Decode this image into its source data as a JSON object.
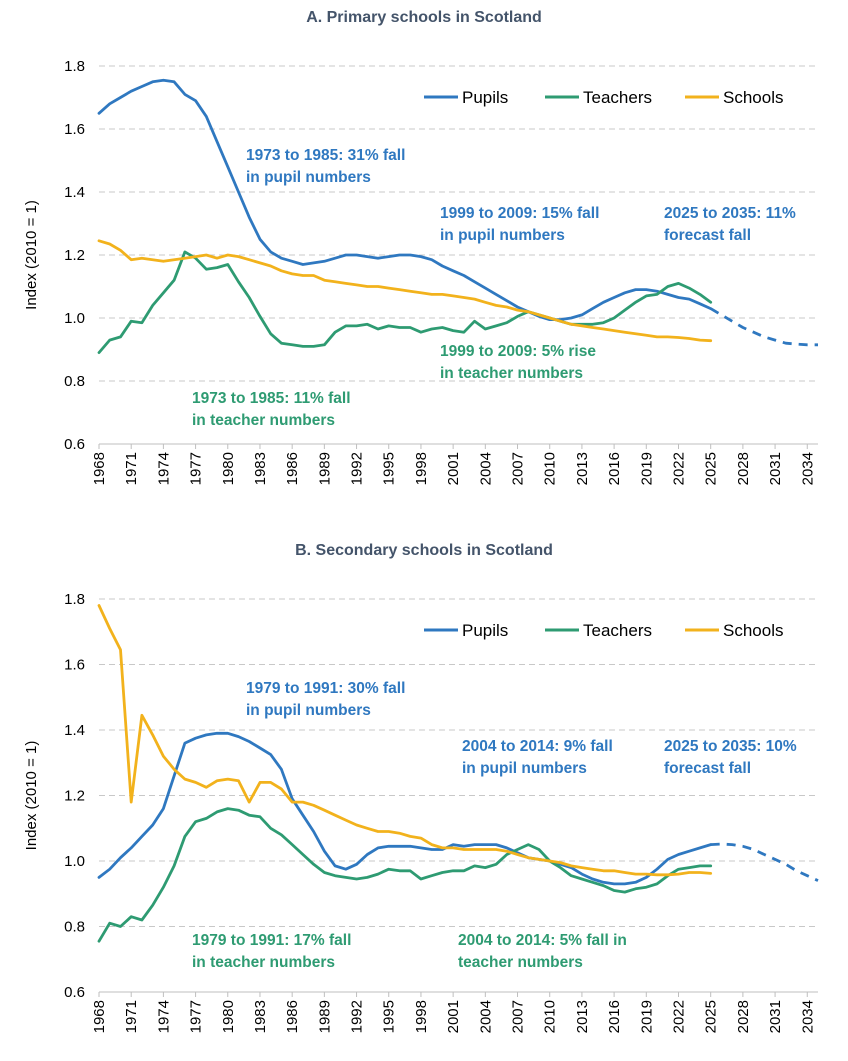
{
  "colors": {
    "pupils": "#2f78c0",
    "teachers": "#2e9b72",
    "schools": "#f2b21c",
    "grid": "#c8c8c8",
    "title": "#44546a"
  },
  "chart_data": [
    {
      "type": "line",
      "title": "A. Primary schools in Scotland",
      "ylabel": "Index (2010 = 1)",
      "ylim": [
        0.6,
        1.8
      ],
      "yticks": [
        "0.6",
        "0.8",
        "1.0",
        "1.2",
        "1.4",
        "1.6",
        "1.8"
      ],
      "xlim": [
        1968,
        2035
      ],
      "xticks": [
        "1968",
        "1971",
        "1974",
        "1977",
        "1980",
        "1983",
        "1986",
        "1989",
        "1992",
        "1995",
        "1998",
        "2001",
        "2004",
        "2007",
        "2010",
        "2013",
        "2016",
        "2019",
        "2022",
        "2025",
        "2028",
        "2031",
        "2034"
      ],
      "grid": true,
      "legend_position": "top-right",
      "series": [
        {
          "name": "Pupils",
          "color": "#2f78c0",
          "x": [
            1968,
            1969,
            1970,
            1971,
            1972,
            1973,
            1974,
            1975,
            1976,
            1977,
            1978,
            1979,
            1980,
            1981,
            1982,
            1983,
            1984,
            1985,
            1986,
            1987,
            1988,
            1989,
            1990,
            1991,
            1992,
            1993,
            1994,
            1995,
            1996,
            1997,
            1998,
            1999,
            2000,
            2001,
            2002,
            2003,
            2004,
            2005,
            2006,
            2007,
            2008,
            2009,
            2010,
            2011,
            2012,
            2013,
            2014,
            2015,
            2016,
            2017,
            2018,
            2019,
            2020,
            2021,
            2022,
            2023,
            2024,
            2025
          ],
          "y": [
            1.65,
            1.68,
            1.7,
            1.72,
            1.735,
            1.75,
            1.755,
            1.75,
            1.71,
            1.69,
            1.64,
            1.56,
            1.48,
            1.4,
            1.32,
            1.25,
            1.21,
            1.19,
            1.18,
            1.17,
            1.175,
            1.18,
            1.19,
            1.2,
            1.2,
            1.195,
            1.19,
            1.195,
            1.2,
            1.2,
            1.195,
            1.185,
            1.165,
            1.15,
            1.135,
            1.115,
            1.095,
            1.075,
            1.055,
            1.035,
            1.02,
            1.005,
            0.995,
            0.995,
            1.0,
            1.01,
            1.03,
            1.05,
            1.065,
            1.08,
            1.09,
            1.09,
            1.085,
            1.075,
            1.065,
            1.06,
            1.045,
            1.03
          ]
        },
        {
          "name": "Teachers",
          "color": "#2e9b72",
          "x": [
            1968,
            1969,
            1970,
            1971,
            1972,
            1973,
            1974,
            1975,
            1976,
            1977,
            1978,
            1979,
            1980,
            1981,
            1982,
            1983,
            1984,
            1985,
            1986,
            1987,
            1988,
            1989,
            1990,
            1991,
            1992,
            1993,
            1994,
            1995,
            1996,
            1997,
            1998,
            1999,
            2000,
            2001,
            2002,
            2003,
            2004,
            2005,
            2006,
            2007,
            2008,
            2009,
            2010,
            2011,
            2012,
            2013,
            2014,
            2015,
            2016,
            2017,
            2018,
            2019,
            2020,
            2021,
            2022,
            2023,
            2024,
            2025
          ],
          "y": [
            0.89,
            0.93,
            0.94,
            0.99,
            0.985,
            1.04,
            1.08,
            1.12,
            1.21,
            1.19,
            1.155,
            1.16,
            1.17,
            1.115,
            1.065,
            1.005,
            0.95,
            0.92,
            0.915,
            0.91,
            0.91,
            0.915,
            0.955,
            0.975,
            0.975,
            0.98,
            0.965,
            0.975,
            0.97,
            0.97,
            0.955,
            0.965,
            0.97,
            0.96,
            0.955,
            0.99,
            0.965,
            0.975,
            0.985,
            1.005,
            1.02,
            1.01,
            1.0,
            0.99,
            0.98,
            0.98,
            0.98,
            0.985,
            1.0,
            1.025,
            1.05,
            1.07,
            1.075,
            1.1,
            1.11,
            1.095,
            1.075,
            1.05
          ]
        },
        {
          "name": "Schools",
          "color": "#f2b21c",
          "x": [
            1968,
            1969,
            1970,
            1971,
            1972,
            1973,
            1974,
            1975,
            1976,
            1977,
            1978,
            1979,
            1980,
            1981,
            1982,
            1983,
            1984,
            1985,
            1986,
            1987,
            1988,
            1989,
            1990,
            1991,
            1992,
            1993,
            1994,
            1995,
            1996,
            1997,
            1998,
            1999,
            2000,
            2001,
            2002,
            2003,
            2004,
            2005,
            2006,
            2007,
            2008,
            2009,
            2010,
            2011,
            2012,
            2013,
            2014,
            2015,
            2016,
            2017,
            2018,
            2019,
            2020,
            2021,
            2022,
            2023,
            2024,
            2025
          ],
          "y": [
            1.245,
            1.235,
            1.215,
            1.185,
            1.19,
            1.185,
            1.18,
            1.185,
            1.19,
            1.195,
            1.2,
            1.19,
            1.2,
            1.195,
            1.185,
            1.175,
            1.165,
            1.15,
            1.14,
            1.135,
            1.135,
            1.12,
            1.115,
            1.11,
            1.105,
            1.1,
            1.1,
            1.095,
            1.09,
            1.085,
            1.08,
            1.075,
            1.075,
            1.07,
            1.065,
            1.06,
            1.05,
            1.04,
            1.035,
            1.025,
            1.02,
            1.01,
            1.0,
            0.99,
            0.98,
            0.975,
            0.97,
            0.965,
            0.96,
            0.955,
            0.95,
            0.945,
            0.94,
            0.94,
            0.938,
            0.935,
            0.93,
            0.928
          ]
        },
        {
          "name": "Pupils forecast",
          "color": "#2f78c0",
          "dashed": true,
          "legend": false,
          "x": [
            2025,
            2026,
            2027,
            2028,
            2029,
            2030,
            2031,
            2032,
            2033,
            2034,
            2035
          ],
          "y": [
            1.03,
            1.01,
            0.99,
            0.97,
            0.955,
            0.94,
            0.93,
            0.92,
            0.917,
            0.915,
            0.915
          ]
        }
      ],
      "annotations": [
        {
          "lines": [
            "1973 to 1985: 31% fall",
            "in pupil numbers"
          ],
          "color": "#2f78c0"
        },
        {
          "lines": [
            "1999 to 2009: 15% fall",
            "in pupil numbers"
          ],
          "color": "#2f78c0"
        },
        {
          "lines": [
            "2025 to 2035: 11%",
            "forecast fall"
          ],
          "color": "#2f78c0"
        },
        {
          "lines": [
            "1999 to 2009: 5% rise",
            "in teacher numbers"
          ],
          "color": "#2e9b72"
        },
        {
          "lines": [
            "1973 to 1985: 11% fall",
            "in teacher numbers"
          ],
          "color": "#2e9b72"
        }
      ]
    },
    {
      "type": "line",
      "title": "B. Secondary schools in Scotland",
      "ylabel": "Index (2010 = 1)",
      "ylim": [
        0.6,
        1.8
      ],
      "yticks": [
        "0.6",
        "0.8",
        "1.0",
        "1.2",
        "1.4",
        "1.6",
        "1.8"
      ],
      "xlim": [
        1968,
        2035
      ],
      "xticks": [
        "1968",
        "1971",
        "1974",
        "1977",
        "1980",
        "1983",
        "1986",
        "1989",
        "1992",
        "1995",
        "1998",
        "2001",
        "2004",
        "2007",
        "2010",
        "2013",
        "2016",
        "2019",
        "2022",
        "2025",
        "2028",
        "2031",
        "2034"
      ],
      "grid": true,
      "legend_position": "top-right",
      "series": [
        {
          "name": "Pupils",
          "color": "#2f78c0",
          "x": [
            1968,
            1969,
            1970,
            1971,
            1972,
            1973,
            1974,
            1975,
            1976,
            1977,
            1978,
            1979,
            1980,
            1981,
            1982,
            1983,
            1984,
            1985,
            1986,
            1987,
            1988,
            1989,
            1990,
            1991,
            1992,
            1993,
            1994,
            1995,
            1996,
            1997,
            1998,
            1999,
            2000,
            2001,
            2002,
            2003,
            2004,
            2005,
            2006,
            2007,
            2008,
            2009,
            2010,
            2011,
            2012,
            2013,
            2014,
            2015,
            2016,
            2017,
            2018,
            2019,
            2020,
            2021,
            2022,
            2023,
            2024,
            2025
          ],
          "y": [
            0.95,
            0.975,
            1.01,
            1.04,
            1.075,
            1.11,
            1.16,
            1.26,
            1.36,
            1.375,
            1.385,
            1.39,
            1.39,
            1.38,
            1.365,
            1.345,
            1.325,
            1.28,
            1.19,
            1.14,
            1.09,
            1.03,
            0.985,
            0.975,
            0.99,
            1.02,
            1.04,
            1.045,
            1.045,
            1.045,
            1.04,
            1.035,
            1.035,
            1.05,
            1.045,
            1.05,
            1.05,
            1.05,
            1.04,
            1.025,
            1.01,
            1.005,
            1.0,
            0.99,
            0.98,
            0.96,
            0.945,
            0.935,
            0.93,
            0.93,
            0.935,
            0.95,
            0.975,
            1.005,
            1.02,
            1.03,
            1.04,
            1.05
          ]
        },
        {
          "name": "Teachers",
          "color": "#2e9b72",
          "x": [
            1968,
            1969,
            1970,
            1971,
            1972,
            1973,
            1974,
            1975,
            1976,
            1977,
            1978,
            1979,
            1980,
            1981,
            1982,
            1983,
            1984,
            1985,
            1986,
            1987,
            1988,
            1989,
            1990,
            1991,
            1992,
            1993,
            1994,
            1995,
            1996,
            1997,
            1998,
            1999,
            2000,
            2001,
            2002,
            2003,
            2004,
            2005,
            2006,
            2007,
            2008,
            2009,
            2010,
            2011,
            2012,
            2013,
            2014,
            2015,
            2016,
            2017,
            2018,
            2019,
            2020,
            2021,
            2022,
            2023,
            2024,
            2025
          ],
          "y": [
            0.755,
            0.81,
            0.8,
            0.83,
            0.82,
            0.865,
            0.92,
            0.985,
            1.075,
            1.12,
            1.13,
            1.15,
            1.16,
            1.155,
            1.14,
            1.135,
            1.1,
            1.08,
            1.05,
            1.02,
            0.99,
            0.965,
            0.955,
            0.95,
            0.945,
            0.95,
            0.96,
            0.975,
            0.97,
            0.97,
            0.945,
            0.955,
            0.965,
            0.97,
            0.97,
            0.985,
            0.98,
            0.99,
            1.02,
            1.035,
            1.05,
            1.035,
            1.0,
            0.98,
            0.955,
            0.945,
            0.935,
            0.925,
            0.91,
            0.905,
            0.915,
            0.92,
            0.93,
            0.955,
            0.975,
            0.98,
            0.985,
            0.985
          ]
        },
        {
          "name": "Schools",
          "color": "#f2b21c",
          "x": [
            1968,
            1969,
            1970,
            1971,
            1972,
            1973,
            1974,
            1975,
            1976,
            1977,
            1978,
            1979,
            1980,
            1981,
            1982,
            1983,
            1984,
            1985,
            1986,
            1987,
            1988,
            1989,
            1990,
            1991,
            1992,
            1993,
            1994,
            1995,
            1996,
            1997,
            1998,
            1999,
            2000,
            2001,
            2002,
            2003,
            2004,
            2005,
            2006,
            2007,
            2008,
            2009,
            2010,
            2011,
            2012,
            2013,
            2014,
            2015,
            2016,
            2017,
            2018,
            2019,
            2020,
            2021,
            2022,
            2023,
            2024,
            2025
          ],
          "y": [
            1.78,
            1.71,
            1.645,
            1.18,
            1.445,
            1.385,
            1.32,
            1.28,
            1.25,
            1.24,
            1.225,
            1.245,
            1.25,
            1.245,
            1.18,
            1.24,
            1.24,
            1.22,
            1.18,
            1.18,
            1.17,
            1.155,
            1.14,
            1.125,
            1.11,
            1.1,
            1.09,
            1.09,
            1.085,
            1.075,
            1.07,
            1.05,
            1.04,
            1.04,
            1.035,
            1.035,
            1.035,
            1.035,
            1.03,
            1.02,
            1.01,
            1.005,
            1.0,
            0.995,
            0.985,
            0.98,
            0.975,
            0.97,
            0.97,
            0.965,
            0.96,
            0.96,
            0.958,
            0.958,
            0.96,
            0.965,
            0.965,
            0.962
          ]
        },
        {
          "name": "Pupils forecast",
          "color": "#2f78c0",
          "dashed": true,
          "legend": false,
          "x": [
            2025,
            2026,
            2027,
            2028,
            2029,
            2030,
            2031,
            2032,
            2033,
            2034,
            2035
          ],
          "y": [
            1.05,
            1.052,
            1.05,
            1.045,
            1.035,
            1.02,
            1.005,
            0.99,
            0.97,
            0.955,
            0.94
          ]
        }
      ],
      "annotations": [
        {
          "lines": [
            "1979 to 1991: 30% fall",
            "in pupil numbers"
          ],
          "color": "#2f78c0"
        },
        {
          "lines": [
            "2004 to 2014: 9% fall",
            "in pupil numbers"
          ],
          "color": "#2f78c0"
        },
        {
          "lines": [
            "2025 to 2035: 10%",
            "forecast fall"
          ],
          "color": "#2f78c0"
        },
        {
          "lines": [
            "1979 to 1991: 17% fall",
            "in teacher numbers"
          ],
          "color": "#2e9b72"
        },
        {
          "lines": [
            "2004 to 2014: 5% fall in",
            "teacher numbers"
          ],
          "color": "#2e9b72"
        }
      ]
    }
  ]
}
